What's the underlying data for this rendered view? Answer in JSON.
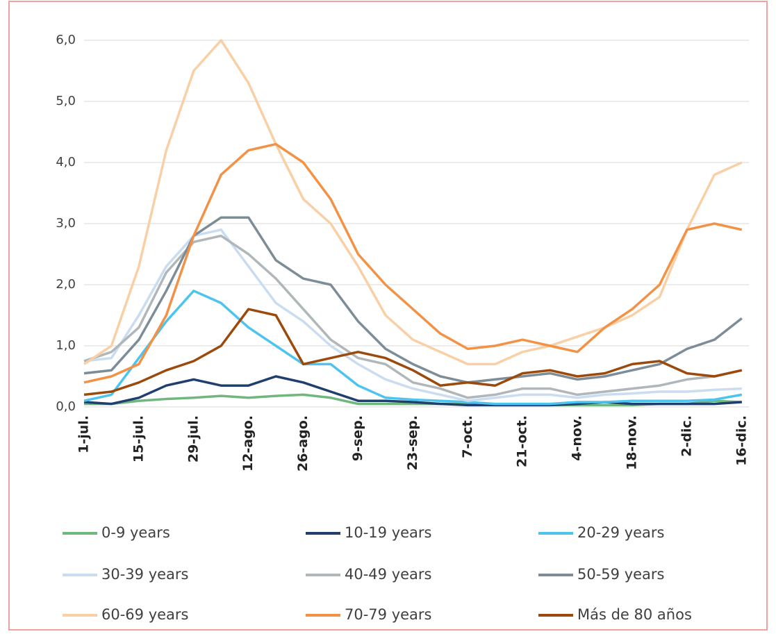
{
  "chart_data": {
    "type": "line",
    "categories": [
      "1-jul.",
      null,
      "15-jul.",
      null,
      "29-jul.",
      null,
      "12-ago.",
      null,
      "26-ago.",
      null,
      "9-sep.",
      null,
      "23-sep.",
      null,
      "7-oct.",
      null,
      "21-oct.",
      null,
      "4-nov.",
      null,
      "18-nov.",
      null,
      "2-dic.",
      null,
      "16-dic."
    ],
    "ylim": [
      0,
      6
    ],
    "yticks": [
      {
        "value": 0,
        "label": "0,0"
      },
      {
        "value": 1,
        "label": "1,0"
      },
      {
        "value": 2,
        "label": "2,0"
      },
      {
        "value": 3,
        "label": "3,0"
      },
      {
        "value": 4,
        "label": "4,0"
      },
      {
        "value": 5,
        "label": "5,0"
      },
      {
        "value": 6,
        "label": "6,0"
      }
    ],
    "grid": true,
    "legend": "bottom",
    "series": [
      {
        "name": "0-9 years",
        "color": "#70b77e",
        "values": [
          0.05,
          0.05,
          0.1,
          0.13,
          0.15,
          0.18,
          0.15,
          0.18,
          0.2,
          0.15,
          0.05,
          0.05,
          0.05,
          0.05,
          0.05,
          0.03,
          0.03,
          0.03,
          0.03,
          0.03,
          0.03,
          0.05,
          0.05,
          0.1,
          0.08
        ]
      },
      {
        "name": "10-19 years",
        "color": "#1f3f6e",
        "values": [
          0.08,
          0.05,
          0.15,
          0.35,
          0.45,
          0.35,
          0.35,
          0.5,
          0.4,
          0.25,
          0.1,
          0.1,
          0.08,
          0.05,
          0.03,
          0.03,
          0.03,
          0.03,
          0.05,
          0.08,
          0.05,
          0.05,
          0.05,
          0.05,
          0.08
        ]
      },
      {
        "name": "20-29 years",
        "color": "#4dc3f0",
        "values": [
          0.1,
          0.2,
          0.8,
          1.4,
          1.9,
          1.7,
          1.3,
          1.0,
          0.7,
          0.7,
          0.35,
          0.15,
          0.12,
          0.1,
          0.08,
          0.05,
          0.05,
          0.05,
          0.08,
          0.08,
          0.1,
          0.1,
          0.1,
          0.12,
          0.2
        ]
      },
      {
        "name": "30-39 years",
        "color": "#c9dcf0",
        "values": [
          0.75,
          0.8,
          1.5,
          2.3,
          2.8,
          2.9,
          2.3,
          1.7,
          1.4,
          1.0,
          0.7,
          0.45,
          0.3,
          0.2,
          0.1,
          0.15,
          0.2,
          0.2,
          0.15,
          0.2,
          0.22,
          0.25,
          0.25,
          0.28,
          0.3
        ]
      },
      {
        "name": "40-49 years",
        "color": "#b0b7ba",
        "values": [
          0.75,
          0.9,
          1.3,
          2.2,
          2.7,
          2.8,
          2.5,
          2.1,
          1.6,
          1.1,
          0.8,
          0.7,
          0.4,
          0.3,
          0.15,
          0.2,
          0.3,
          0.3,
          0.2,
          0.25,
          0.3,
          0.35,
          0.45,
          0.5,
          0.6
        ]
      },
      {
        "name": "50-59 years",
        "color": "#7c8d98",
        "values": [
          0.55,
          0.6,
          1.1,
          1.9,
          2.8,
          3.1,
          3.1,
          2.4,
          2.1,
          2.0,
          1.4,
          0.95,
          0.7,
          0.5,
          0.4,
          0.45,
          0.5,
          0.55,
          0.45,
          0.5,
          0.6,
          0.7,
          0.95,
          1.1,
          1.45
        ]
      },
      {
        "name": "60-69 years",
        "color": "#f9cfa6",
        "values": [
          0.7,
          1.0,
          2.3,
          4.2,
          5.5,
          6.0,
          5.3,
          4.3,
          3.4,
          3.0,
          2.3,
          1.5,
          1.1,
          0.9,
          0.7,
          0.7,
          0.9,
          1.0,
          1.15,
          1.3,
          1.5,
          1.8,
          2.9,
          3.8,
          4.0
        ]
      },
      {
        "name": "70-79 years",
        "color": "#f39245",
        "values": [
          0.4,
          0.5,
          0.7,
          1.5,
          2.8,
          3.8,
          4.2,
          4.3,
          4.0,
          3.4,
          2.5,
          2.0,
          1.6,
          1.2,
          0.95,
          1.0,
          1.1,
          1.0,
          0.9,
          1.3,
          1.6,
          2.0,
          2.9,
          3.0,
          2.9
        ]
      },
      {
        "name": "Más de 80 años",
        "color": "#9b4a0c",
        "values": [
          0.2,
          0.25,
          0.4,
          0.6,
          0.75,
          1.0,
          1.6,
          1.5,
          0.7,
          0.8,
          0.9,
          0.8,
          0.6,
          0.35,
          0.4,
          0.35,
          0.55,
          0.6,
          0.5,
          0.55,
          0.7,
          0.75,
          0.55,
          0.5,
          0.6
        ]
      }
    ]
  }
}
